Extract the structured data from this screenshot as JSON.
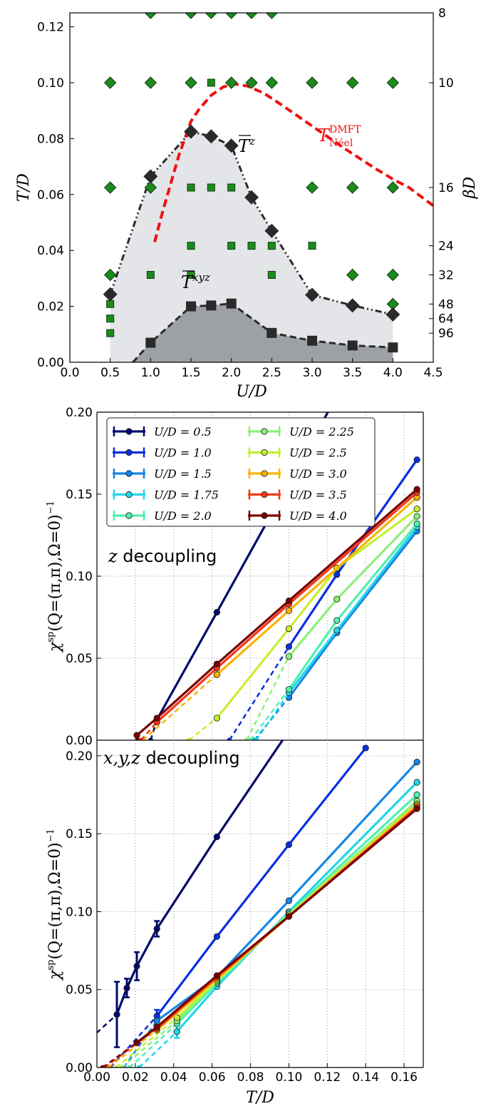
{
  "chart_data": [
    {
      "type": "scatter",
      "xlabel": "U/D",
      "ylabel": "T/D",
      "y2label": "βD",
      "xlim": [
        0.0,
        4.5
      ],
      "ylim": [
        0.0,
        0.125
      ],
      "xticks": [
        "0.0",
        "0.5",
        "1.0",
        "1.5",
        "2.0",
        "2.5",
        "3.0",
        "3.5",
        "4.0",
        "4.5"
      ],
      "yticks": [
        "0.00",
        "0.02",
        "0.04",
        "0.06",
        "0.08",
        "0.10",
        "0.12"
      ],
      "y2ticks": [
        {
          "label": "8",
          "T": 0.125
        },
        {
          "label": "10",
          "T": 0.1
        },
        {
          "label": "16",
          "T": 0.0625
        },
        {
          "label": "24",
          "T": 0.04167
        },
        {
          "label": "32",
          "T": 0.03125
        },
        {
          "label": "48",
          "T": 0.02083
        },
        {
          "label": "64",
          "T": 0.01563
        },
        {
          "label": "96",
          "T": 0.01042
        }
      ],
      "series": [
        {
          "name": "T̄^z",
          "style": "black diamonds, dash-dot line, light gray fill",
          "points": [
            [
              0.5,
              0.0243
            ],
            [
              1.0,
              0.0665
            ],
            [
              1.5,
              0.0825
            ],
            [
              1.75,
              0.0808
            ],
            [
              2.0,
              0.0775
            ],
            [
              2.25,
              0.059
            ],
            [
              2.5,
              0.047
            ],
            [
              3.0,
              0.0241
            ],
            [
              3.5,
              0.0203
            ],
            [
              4.0,
              0.0171
            ]
          ]
        },
        {
          "name": "T̄^xyz",
          "style": "black squares, dashed line, dark gray fill",
          "points": [
            [
              0.78,
              0.0
            ],
            [
              1.0,
              0.007
            ],
            [
              1.5,
              0.02
            ],
            [
              1.75,
              0.0203
            ],
            [
              2.0,
              0.021
            ],
            [
              2.5,
              0.0105
            ],
            [
              3.0,
              0.0077
            ],
            [
              3.5,
              0.006
            ],
            [
              4.0,
              0.0053
            ]
          ]
        },
        {
          "name": "T_Néel^DMFT",
          "style": "red dashed curve",
          "points": [
            [
              1.05,
              0.043
            ],
            [
              1.15,
              0.054
            ],
            [
              1.25,
              0.064
            ],
            [
              1.35,
              0.074
            ],
            [
              1.5,
              0.0862
            ],
            [
              1.6,
              0.0905
            ],
            [
              1.75,
              0.0955
            ],
            [
              1.9,
              0.0985
            ],
            [
              2.05,
              0.0995
            ],
            [
              2.2,
              0.0988
            ],
            [
              2.4,
              0.0963
            ],
            [
              2.6,
              0.0925
            ],
            [
              2.8,
              0.0885
            ],
            [
              3.0,
              0.0845
            ],
            [
              3.2,
              0.0805
            ],
            [
              3.4,
              0.0765
            ],
            [
              3.6,
              0.0727
            ],
            [
              3.8,
              0.069
            ],
            [
              4.0,
              0.0655
            ],
            [
              4.2,
              0.0625
            ],
            [
              4.5,
              0.056
            ]
          ]
        },
        {
          "name": "DMFT diamonds",
          "style": "green diamonds",
          "points": [
            [
              0.5,
              0.1
            ],
            [
              1.0,
              0.1
            ],
            [
              1.5,
              0.1
            ],
            [
              2.0,
              0.1
            ],
            [
              2.25,
              0.1
            ],
            [
              2.5,
              0.1
            ],
            [
              3.0,
              0.1
            ],
            [
              3.5,
              0.1
            ],
            [
              4.0,
              0.1
            ],
            [
              0.5,
              0.0625
            ],
            [
              1.0,
              0.0625
            ],
            [
              3.0,
              0.0625
            ],
            [
              3.5,
              0.0625
            ],
            [
              4.0,
              0.0625
            ],
            [
              0.5,
              0.03125
            ],
            [
              3.5,
              0.03125
            ],
            [
              4.0,
              0.03125
            ],
            [
              4.0,
              0.02083
            ],
            [
              1.0,
              0.125
            ],
            [
              1.5,
              0.125
            ],
            [
              1.75,
              0.125
            ],
            [
              2.0,
              0.125
            ],
            [
              2.25,
              0.125
            ],
            [
              2.5,
              0.125
            ]
          ]
        },
        {
          "name": "DMFT squares",
          "style": "green squares",
          "points": [
            [
              1.75,
              0.1
            ],
            [
              1.5,
              0.0625
            ],
            [
              1.75,
              0.0625
            ],
            [
              2.0,
              0.0625
            ],
            [
              1.5,
              0.04167
            ],
            [
              2.0,
              0.04167
            ],
            [
              2.25,
              0.04167
            ],
            [
              2.5,
              0.04167
            ],
            [
              3.0,
              0.04167
            ],
            [
              1.0,
              0.03125
            ],
            [
              1.5,
              0.03125
            ],
            [
              2.5,
              0.03125
            ],
            [
              0.5,
              0.02083
            ],
            [
              0.5,
              0.01563
            ],
            [
              0.5,
              0.01042
            ]
          ]
        }
      ],
      "annotations": [
        "T̄^z",
        "T̄^xyz",
        "T_Néel^DMFT"
      ]
    },
    {
      "type": "line",
      "note": "z decoupling",
      "xlabel": "T/D",
      "ylabel": "χ^sp(Q=(π,π),Ω=0)^−1",
      "xlim": [
        0.0,
        0.17
      ],
      "ylim": [
        0.0,
        0.2
      ],
      "yticks": [
        "0.00",
        "0.05",
        "0.10",
        "0.15",
        "0.20"
      ],
      "legend_position": "top-left",
      "series": [
        {
          "name": "U/D = 0.5",
          "color": "#000a6b",
          "x0": 0.028,
          "points": [
            [
              0.03125,
              0.0125
            ],
            [
              0.0625,
              0.078
            ],
            [
              0.1,
              0.157
            ],
            [
              0.125,
              0.21
            ]
          ]
        },
        {
          "name": "U/D = 1.0",
          "color": "#0a2fe0",
          "x0": 0.069,
          "points": [
            [
              0.1,
              0.057
            ],
            [
              0.125,
              0.101
            ],
            [
              0.1667,
              0.171
            ]
          ]
        },
        {
          "name": "U/D = 1.5",
          "color": "#1487e6",
          "x0": 0.082,
          "points": [
            [
              0.1,
              0.026
            ],
            [
              0.125,
              0.0655
            ],
            [
              0.1667,
              0.1275
            ]
          ]
        },
        {
          "name": "U/D = 1.75",
          "color": "#22d6e8",
          "x0": 0.083,
          "points": [
            [
              0.1,
              0.029
            ],
            [
              0.125,
              0.067
            ],
            [
              0.1667,
              0.13
            ]
          ]
        },
        {
          "name": "U/D = 2.0",
          "color": "#52f0b0",
          "x0": 0.08,
          "points": [
            [
              0.1,
              0.031
            ],
            [
              0.125,
              0.073
            ],
            [
              0.1667,
              0.132
            ]
          ]
        },
        {
          "name": "U/D = 2.25",
          "color": "#8cf07a",
          "x0": 0.078,
          "points": [
            [
              0.1,
              0.051
            ],
            [
              0.125,
              0.086
            ],
            [
              0.1667,
              0.1365
            ]
          ]
        },
        {
          "name": "U/D = 2.5",
          "color": "#c4f030",
          "x0": 0.048,
          "points": [
            [
              0.0625,
              0.0135
            ],
            [
              0.1,
              0.068
            ],
            [
              0.125,
              0.105
            ],
            [
              0.1667,
              0.141
            ]
          ]
        },
        {
          "name": "U/D = 3.0",
          "color": "#f8b400",
          "x0": 0.024,
          "points": [
            [
              0.0625,
              0.04
            ],
            [
              0.1,
              0.079
            ],
            [
              0.1667,
              0.148
            ]
          ]
        },
        {
          "name": "U/D = 3.5",
          "color": "#f43818",
          "x0": 0.023,
          "points": [
            [
              0.03125,
              0.011
            ],
            [
              0.0625,
              0.044
            ],
            [
              0.1,
              0.083
            ],
            [
              0.1667,
              0.151
            ]
          ]
        },
        {
          "name": "U/D = 4.0",
          "color": "#7a0000",
          "x0": 0.021,
          "points": [
            [
              0.0208,
              0.003
            ],
            [
              0.03125,
              0.0135
            ],
            [
              0.0625,
              0.0465
            ],
            [
              0.1,
              0.085
            ],
            [
              0.1667,
              0.153
            ]
          ]
        }
      ]
    },
    {
      "type": "line",
      "note": "x,y,z decoupling",
      "xlabel": "T/D",
      "ylabel": "χ^sp(Q=(π,π),Ω=0)^−1",
      "xlim": [
        0.0,
        0.17
      ],
      "ylim": [
        0.0,
        0.21
      ],
      "xticks": [
        "0.00",
        "0.02",
        "0.04",
        "0.06",
        "0.08",
        "0.10",
        "0.12",
        "0.14",
        "0.16"
      ],
      "yticks": [
        "0.00",
        "0.05",
        "0.10",
        "0.15",
        "0.20"
      ],
      "series": [
        {
          "name": "U/D = 0.5",
          "color": "#000a6b",
          "x0": -0.02,
          "points": [
            [
              0.0104,
              0.034
            ],
            [
              0.0156,
              0.051
            ],
            [
              0.0208,
              0.065
            ],
            [
              0.03125,
              0.089
            ],
            [
              0.0625,
              0.148
            ],
            [
              0.1,
              0.216
            ]
          ],
          "err": [
            0.021,
            0.006,
            0.009,
            0.005,
            0,
            0
          ]
        },
        {
          "name": "U/D = 1.0",
          "color": "#0a2fe0",
          "x0": 0.007,
          "points": [
            [
              0.03125,
              0.033
            ],
            [
              0.0625,
              0.084
            ],
            [
              0.1,
              0.143
            ],
            [
              0.14,
              0.205
            ]
          ],
          "err": [
            0.004,
            0,
            0,
            0
          ]
        },
        {
          "name": "U/D = 1.5",
          "color": "#1487e6",
          "x0": 0.014,
          "points": [
            [
              0.03125,
              0.03
            ],
            [
              0.0625,
              0.058
            ],
            [
              0.1,
              0.107
            ],
            [
              0.1667,
              0.196
            ]
          ]
        },
        {
          "name": "U/D = 1.75",
          "color": "#22d6e8",
          "x0": 0.022,
          "points": [
            [
              0.04167,
              0.023
            ],
            [
              0.0625,
              0.052
            ],
            [
              0.1,
              0.1
            ],
            [
              0.1667,
              0.183
            ]
          ],
          "err": [
            0.004,
            0,
            0,
            0
          ]
        },
        {
          "name": "U/D = 2.0",
          "color": "#52f0b0",
          "x0": 0.017,
          "points": [
            [
              0.04167,
              0.028
            ],
            [
              0.0625,
              0.054
            ],
            [
              0.1,
              0.099
            ],
            [
              0.1667,
              0.175
            ]
          ]
        },
        {
          "name": "U/D = 2.25",
          "color": "#8cf07a",
          "x0": 0.013,
          "points": [
            [
              0.04167,
              0.03
            ],
            [
              0.0625,
              0.055
            ],
            [
              0.1,
              0.098
            ],
            [
              0.1667,
              0.171
            ]
          ]
        },
        {
          "name": "U/D = 2.5",
          "color": "#c4f030",
          "x0": 0.01,
          "points": [
            [
              0.04167,
              0.032
            ],
            [
              0.0625,
              0.056
            ],
            [
              0.1,
              0.098
            ],
            [
              0.1667,
              0.169
            ]
          ]
        },
        {
          "name": "U/D = 3.0",
          "color": "#f8b400",
          "x0": 0.006,
          "points": [
            [
              0.03125,
              0.024
            ],
            [
              0.0625,
              0.057
            ],
            [
              0.1,
              0.097
            ],
            [
              0.1667,
              0.168
            ]
          ]
        },
        {
          "name": "U/D = 3.5",
          "color": "#f43818",
          "x0": 0.004,
          "points": [
            [
              0.03125,
              0.025
            ],
            [
              0.0625,
              0.058
            ],
            [
              0.1,
              0.097
            ],
            [
              0.1667,
              0.167
            ]
          ]
        },
        {
          "name": "U/D = 4.0",
          "color": "#7a0000",
          "x0": 0.003,
          "points": [
            [
              0.0208,
              0.016
            ],
            [
              0.03125,
              0.026
            ],
            [
              0.0625,
              0.059
            ],
            [
              0.1,
              0.097
            ],
            [
              0.1667,
              0.166
            ]
          ]
        }
      ]
    }
  ],
  "legend": [
    {
      "label": "U/D = 0.5",
      "color": "#000a6b"
    },
    {
      "label": "U/D = 1.0",
      "color": "#0a2fe0"
    },
    {
      "label": "U/D = 1.5",
      "color": "#1487e6"
    },
    {
      "label": "U/D = 1.75",
      "color": "#22d6e8"
    },
    {
      "label": "U/D = 2.0",
      "color": "#52f0b0"
    },
    {
      "label": "U/D = 2.25",
      "color": "#8cf07a"
    },
    {
      "label": "U/D = 2.5",
      "color": "#c4f030"
    },
    {
      "label": "U/D = 3.0",
      "color": "#f8b400"
    },
    {
      "label": "U/D = 3.5",
      "color": "#f43818"
    },
    {
      "label": "U/D = 4.0",
      "color": "#7a0000"
    }
  ],
  "labels": {
    "top_xlabel": "U/D",
    "top_ylabel": "T/D",
    "top_y2label": "βD",
    "tz_label": "T̄^z",
    "txyz_label": "T̄^xyz",
    "tneel_label": "T_Néel^DMFT",
    "mid_note": "z decoupling",
    "bot_note": "x,y,z decoupling",
    "bottom_xlabel": "T/D",
    "chi_ylabel": "χ^sp(Q=(π,π),Ω=0)^−1"
  }
}
